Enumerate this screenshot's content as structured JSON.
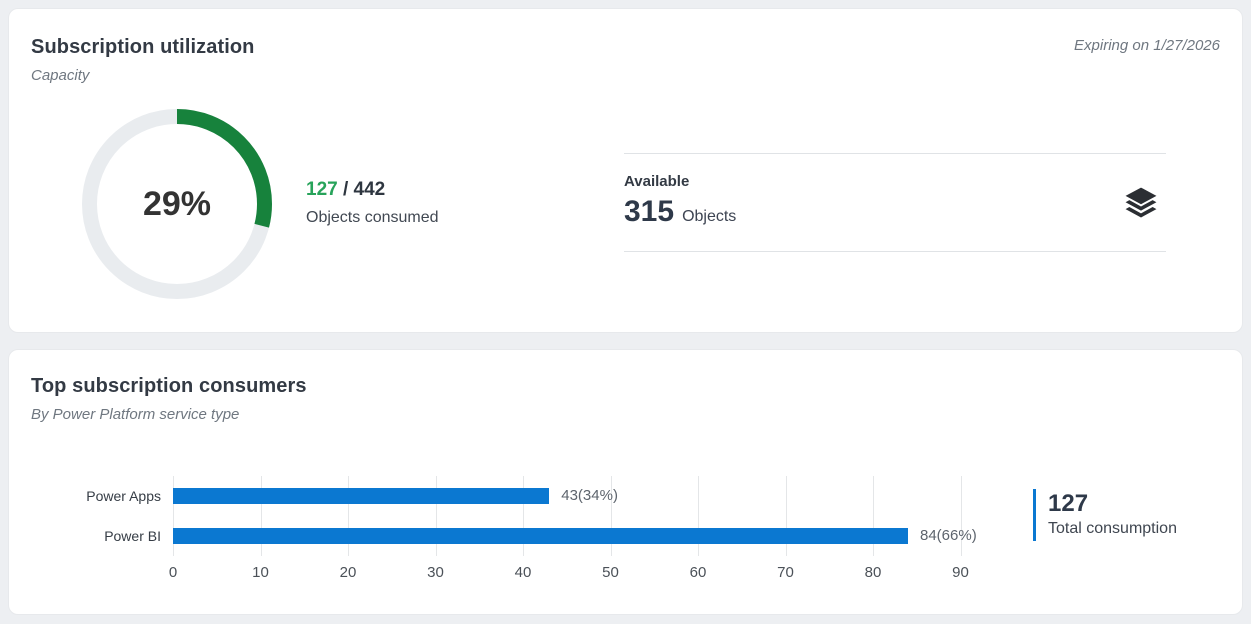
{
  "colors": {
    "page_background": "#edeff2",
    "card_background": "#ffffff",
    "gauge_green": "#17823c",
    "gauge_track": "#e9ecef",
    "green_text": "#27a35a",
    "bar_blue": "#0b78d1",
    "dark_text": "#333a44",
    "muted_text": "#6f7780"
  },
  "utilization_card": {
    "title": "Subscription utilization",
    "subtitle": "Capacity",
    "expiry_note": "Expiring on 1/27/2026",
    "consumed": {
      "value": "127",
      "separator": " / ",
      "total": "442",
      "caption": "Objects consumed"
    },
    "available": {
      "heading": "Available",
      "value": "315",
      "unit": "Objects",
      "icon": "layers-icon"
    }
  },
  "consumers_card": {
    "title": "Top subscription consumers",
    "subtitle": "By Power Platform service type",
    "total": {
      "value": "127",
      "caption": "Total consumption"
    }
  },
  "chart_data": [
    {
      "type": "pie",
      "variant": "donut",
      "title": "Subscription utilization donut gauge",
      "center_label": "29%",
      "slices": [
        {
          "label": "consumed",
          "percent": 29,
          "color": "#17823c"
        },
        {
          "label": "remaining",
          "percent": 71,
          "color": "#e9ecef"
        }
      ],
      "start_angle_deg": 0,
      "direction": "clockwise"
    },
    {
      "type": "bar",
      "orientation": "horizontal",
      "title": "Top subscription consumers",
      "categories": [
        "Power Apps",
        "Power BI"
      ],
      "values": [
        43,
        84
      ],
      "data_labels": [
        "43(34%)",
        "84(66%)"
      ],
      "x_ticks": [
        0,
        10,
        20,
        30,
        40,
        50,
        60,
        70,
        80,
        90
      ],
      "xlim": [
        0,
        96
      ],
      "bar_color": "#0b78d1",
      "grid": true,
      "legend": false,
      "total": 127
    }
  ]
}
